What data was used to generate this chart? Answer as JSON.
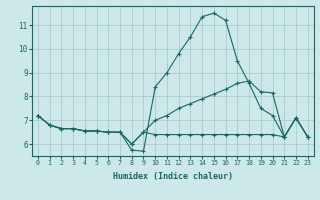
{
  "xlabel": "Humidex (Indice chaleur)",
  "bg_color": "#cce8e8",
  "grid_color": "#aacccc",
  "line_color": "#1a6666",
  "xlim": [
    -0.5,
    23.5
  ],
  "ylim": [
    5.5,
    11.8
  ],
  "yticks": [
    6,
    7,
    8,
    9,
    10,
    11
  ],
  "xticks": [
    0,
    1,
    2,
    3,
    4,
    5,
    6,
    7,
    8,
    9,
    10,
    11,
    12,
    13,
    14,
    15,
    16,
    17,
    18,
    19,
    20,
    21,
    22,
    23
  ],
  "line1_x": [
    0,
    1,
    2,
    3,
    4,
    5,
    6,
    7,
    8,
    9,
    10,
    11,
    12,
    13,
    14,
    15,
    16,
    17,
    18,
    19,
    20,
    21,
    22,
    23
  ],
  "line1_y": [
    7.2,
    6.8,
    6.65,
    6.65,
    6.55,
    6.55,
    6.5,
    6.5,
    5.75,
    5.7,
    8.4,
    9.0,
    9.8,
    10.5,
    11.35,
    11.5,
    11.2,
    9.5,
    8.55,
    7.5,
    7.2,
    6.3,
    7.1,
    6.3
  ],
  "line2_x": [
    0,
    1,
    2,
    3,
    4,
    5,
    6,
    7,
    8,
    9,
    10,
    11,
    12,
    13,
    14,
    15,
    16,
    17,
    18,
    19,
    20,
    21,
    22,
    23
  ],
  "line2_y": [
    7.2,
    6.8,
    6.65,
    6.65,
    6.55,
    6.55,
    6.5,
    6.5,
    6.0,
    6.5,
    7.0,
    7.2,
    7.5,
    7.7,
    7.9,
    8.1,
    8.3,
    8.55,
    8.65,
    8.2,
    8.15,
    6.3,
    7.1,
    6.3
  ],
  "line3_x": [
    0,
    1,
    2,
    3,
    4,
    5,
    6,
    7,
    8,
    9,
    10,
    11,
    12,
    13,
    14,
    15,
    16,
    17,
    18,
    19,
    20,
    21,
    22,
    23
  ],
  "line3_y": [
    7.2,
    6.8,
    6.65,
    6.65,
    6.55,
    6.55,
    6.5,
    6.5,
    6.0,
    6.5,
    6.4,
    6.4,
    6.4,
    6.4,
    6.4,
    6.4,
    6.4,
    6.4,
    6.4,
    6.4,
    6.4,
    6.3,
    7.1,
    6.3
  ]
}
